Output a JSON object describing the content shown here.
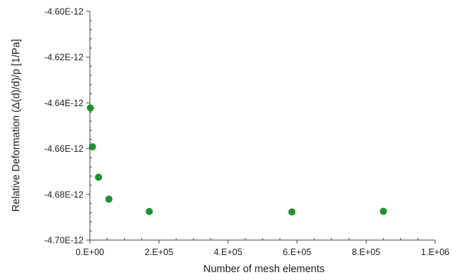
{
  "chart_data": {
    "type": "scatter",
    "title": "",
    "xlabel": "Number of mesh elements",
    "ylabel": "Relative Deformation (Δ(d)/d)/p [1/Pa]",
    "xlim": [
      0,
      1000000
    ],
    "ylim": [
      -4.7e-12,
      -4.6e-12
    ],
    "x_ticks": [
      0,
      200000,
      400000,
      600000,
      800000,
      1000000
    ],
    "x_tick_labels": [
      "0.E+00",
      "2.E+05",
      "4.E+05",
      "6.E+05",
      "8.E+05",
      "1.E+06"
    ],
    "y_ticks": [
      -4.6e-12,
      -4.62e-12,
      -4.64e-12,
      -4.66e-12,
      -4.68e-12,
      -4.7e-12
    ],
    "y_tick_labels": [
      "-4.60E-12",
      "-4.62E-12",
      "-4.64E-12",
      "-4.66E-12",
      "-4.68E-12",
      "-4.70E-12"
    ],
    "grid": false,
    "marker_color": "#1e9130",
    "series": [
      {
        "points": [
          {
            "x": 1500,
            "y": -4.6422e-12
          },
          {
            "x": 7500,
            "y": -4.6592e-12
          },
          {
            "x": 25000,
            "y": -4.6725e-12
          },
          {
            "x": 55000,
            "y": -4.6821e-12
          },
          {
            "x": 172000,
            "y": -4.6875e-12
          },
          {
            "x": 585000,
            "y": -4.6877e-12
          },
          {
            "x": 850000,
            "y": -4.6874e-12
          }
        ]
      }
    ]
  }
}
